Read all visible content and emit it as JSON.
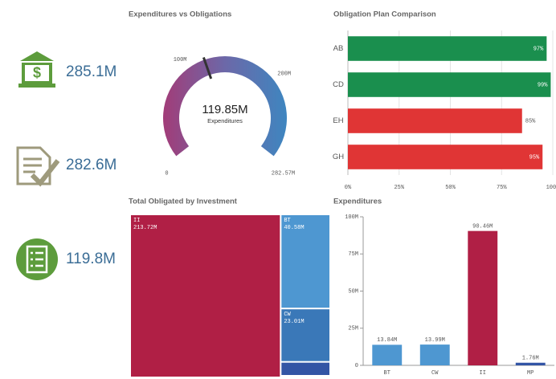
{
  "kpis": [
    {
      "value": "285.1M"
    },
    {
      "value": "282.6M"
    },
    {
      "value": "119.8M"
    }
  ],
  "chart_data": [
    {
      "type": "gauge",
      "title": "Expenditures vs Obligations",
      "value": 119.85,
      "value_label": "119.85M",
      "label": "Expenditures",
      "ylim": [
        0,
        282.57
      ],
      "yticks": [
        0,
        {
          "value": 100,
          "label": "100M"
        },
        {
          "value": 200,
          "label": "200M"
        },
        {
          "value": 282.57,
          "label": "282.57M"
        }
      ]
    },
    {
      "type": "hbar",
      "title": "Obligation Plan Comparison",
      "categories": [
        "AB",
        "CD",
        "EH",
        "GH"
      ],
      "values": [
        97,
        99,
        85,
        95
      ],
      "value_labels": [
        "97%",
        "99%",
        "85%",
        "95%"
      ],
      "colors": [
        "#1a8f4e",
        "#1a8f4e",
        "#e03535",
        "#e03535"
      ],
      "xlim": [
        0,
        100
      ],
      "xticks": [
        {
          "value": 0,
          "label": "0%"
        },
        {
          "value": 25,
          "label": "25%"
        },
        {
          "value": 50,
          "label": "50%"
        },
        {
          "value": 75,
          "label": "75%"
        },
        {
          "value": 100,
          "label": "100%"
        }
      ],
      "grid": true
    },
    {
      "type": "treemap",
      "title": "Total Obligated by Investment",
      "categories": [
        "II",
        "BT",
        "CW",
        null
      ],
      "values": [
        213.72,
        40.58,
        23.01,
        6.0
      ],
      "value_labels": [
        "213.72M",
        "40.58M",
        "23.01M",
        null
      ],
      "colors": [
        "#b01f45",
        "#4e97d1",
        "#3a78b8",
        "#3355a5"
      ]
    },
    {
      "type": "bar",
      "title": "Expenditures",
      "categories": [
        "BT",
        "CW",
        "II",
        "MP"
      ],
      "values": [
        13.84,
        13.99,
        90.46,
        1.76
      ],
      "value_labels": [
        "13.84M",
        "13.99M",
        "90.46M",
        "1.76M"
      ],
      "colors": [
        "#4e97d1",
        "#4e97d1",
        "#b01f45",
        "#3355a5"
      ],
      "ylim": [
        0,
        100
      ],
      "yticks": [
        0,
        {
          "value": 25,
          "label": "25M"
        },
        {
          "value": 50,
          "label": "50M"
        },
        {
          "value": 75,
          "label": "75M"
        },
        {
          "value": 100,
          "label": "100M"
        }
      ]
    }
  ]
}
